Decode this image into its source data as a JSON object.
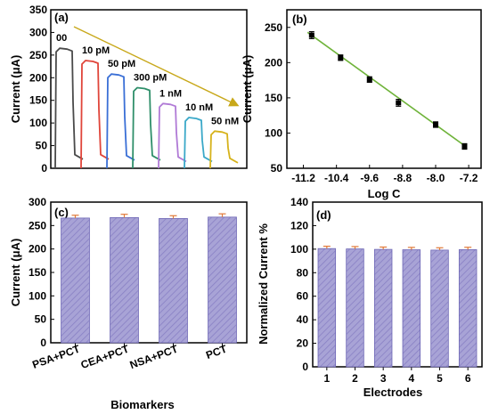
{
  "colors": {
    "axis": "#000000",
    "bar_fill": "#a8a3d6",
    "bar_hatch": "#8880c4",
    "error_bar": "#e07a3a",
    "fit_line": "#6fb33a",
    "arrow": "#c8a81a"
  },
  "chart_data": [
    {
      "panel": "(a)",
      "type": "line",
      "xlabel": "",
      "ylabel": "Current (μA)",
      "ylim": [
        0,
        350
      ],
      "yticks": [
        0,
        50,
        100,
        150,
        200,
        250,
        300,
        350
      ],
      "grid": false,
      "annotation": "downward arrow showing decreasing current with concentration",
      "series": [
        {
          "name": "00",
          "color": "#4a4a4a",
          "values": [
            0,
            265,
            20
          ]
        },
        {
          "name": "10 pM",
          "color": "#e0453a",
          "values": [
            0,
            238,
            20
          ]
        },
        {
          "name": "50 pM",
          "color": "#3a6fd6",
          "values": [
            0,
            208,
            18
          ]
        },
        {
          "name": "300 pM",
          "color": "#2f8f6a",
          "values": [
            0,
            178,
            18
          ]
        },
        {
          "name": "1 nM",
          "color": "#b07ad6",
          "values": [
            0,
            143,
            15
          ]
        },
        {
          "name": "10 nM",
          "color": "#3aa8c8",
          "values": [
            0,
            112,
            15
          ]
        },
        {
          "name": "50 nM",
          "color": "#d6b21a",
          "values": [
            0,
            82,
            12
          ]
        }
      ]
    },
    {
      "panel": "(b)",
      "type": "scatter",
      "xlabel": "Log C",
      "ylabel": "Current (μA)",
      "xlim": [
        -11.6,
        -6.9
      ],
      "ylim": [
        50,
        275
      ],
      "xticks": [
        "-11.2",
        "-10.4",
        "-9.6",
        "-8.8",
        "-8.0",
        "-7.2"
      ],
      "xtick_values": [
        -11.2,
        -10.4,
        -9.6,
        -8.8,
        -8.0,
        -7.2
      ],
      "yticks": [
        50,
        100,
        150,
        200,
        250
      ],
      "x": [
        -11.0,
        -10.3,
        -9.6,
        -8.9,
        -8.0,
        -7.3
      ],
      "y": [
        239,
        207,
        176,
        143,
        112,
        81
      ],
      "err": [
        5,
        4,
        4,
        5,
        4,
        4
      ],
      "fit": {
        "x": [
          -11.1,
          -7.25
        ],
        "y": [
          243,
          80
        ]
      },
      "grid": false
    },
    {
      "panel": "(c)",
      "type": "bar",
      "xlabel": "Biomarkers",
      "ylabel": "Current (μA)",
      "categories": [
        "PSA+PCT",
        "CEA+PCT",
        "NSA+PCT",
        "PCT"
      ],
      "values": [
        266,
        267,
        265,
        268
      ],
      "err": [
        6,
        7,
        6,
        7
      ],
      "ylim": [
        0,
        300
      ],
      "yticks": [
        0,
        50,
        100,
        150,
        200,
        250,
        300
      ],
      "grid": false
    },
    {
      "panel": "(d)",
      "type": "bar",
      "xlabel": "Electrodes",
      "ylabel": "Normalized Current %",
      "categories": [
        "1",
        "2",
        "3",
        "4",
        "5",
        "6"
      ],
      "values": [
        100.5,
        100.2,
        99.8,
        99.5,
        99.2,
        99.6
      ],
      "err": [
        2,
        2,
        2,
        2,
        2,
        2
      ],
      "ylim": [
        0,
        140
      ],
      "yticks": [
        0,
        20,
        40,
        60,
        80,
        100,
        120,
        140
      ],
      "grid": false
    }
  ]
}
